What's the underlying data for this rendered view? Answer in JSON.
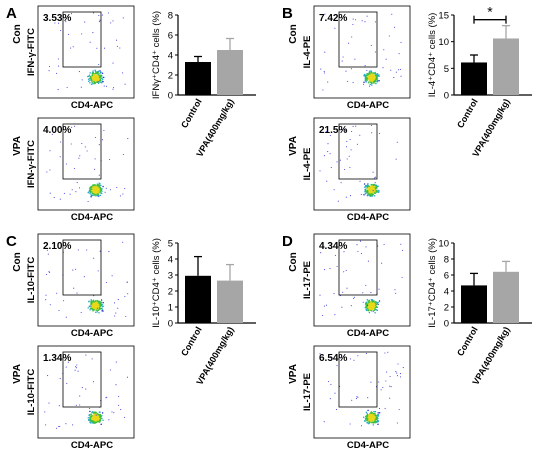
{
  "panels": [
    {
      "letter": "A",
      "flow": [
        {
          "row_label": "Con",
          "y_axis": "IFN-γ-FITC",
          "x_axis": "CD4-APC",
          "percent": "3.53%"
        },
        {
          "row_label": "VPA",
          "y_axis": "IFN-γ-FITC",
          "x_axis": "CD4-APC",
          "percent": "4.00%"
        }
      ]
    },
    {
      "letter": "B",
      "flow": [
        {
          "row_label": "Con",
          "y_axis": "IL-4-PE",
          "x_axis": "CD4-APC",
          "percent": "7.42%"
        },
        {
          "row_label": "VPA",
          "y_axis": "IL-4-PE",
          "x_axis": "CD4-APC",
          "percent": "21.5%"
        }
      ]
    },
    {
      "letter": "C",
      "flow": [
        {
          "row_label": "Con",
          "y_axis": "IL-10-FITC",
          "x_axis": "CD4-APC",
          "percent": "2.10%"
        },
        {
          "row_label": "VPA",
          "y_axis": "IL-10-FITC",
          "x_axis": "CD4-APC",
          "percent": "1.34%"
        }
      ]
    },
    {
      "letter": "D",
      "flow": [
        {
          "row_label": "Con",
          "y_axis": "IL-17-PE",
          "x_axis": "CD4-APC",
          "percent": "4.34%"
        },
        {
          "row_label": "VPA",
          "y_axis": "IL-17-PE",
          "x_axis": "CD4-APC",
          "percent": "6.54%"
        }
      ]
    }
  ],
  "chart_data": [
    {
      "type": "bar",
      "panel": "A",
      "ylabel": "IFNγ⁺CD4⁺ cells (%)",
      "ylim": [
        0,
        8
      ],
      "yticks": [
        0,
        2,
        4,
        6,
        8
      ],
      "categories": [
        "Control",
        "VPA(400mg/kg)"
      ],
      "values": [
        3.3,
        4.5
      ],
      "errors": [
        0.55,
        1.15
      ],
      "colors": [
        "#000000",
        "#a6a6a6"
      ],
      "significance": ""
    },
    {
      "type": "bar",
      "panel": "B",
      "ylabel": "IL-4⁺CD4⁺ cells (%)",
      "ylim": [
        0,
        15
      ],
      "yticks": [
        0,
        5,
        10,
        15
      ],
      "categories": [
        "Control",
        "VPA(400mg/kg)"
      ],
      "values": [
        6.1,
        10.6
      ],
      "errors": [
        1.4,
        2.4
      ],
      "colors": [
        "#000000",
        "#a6a6a6"
      ],
      "significance": "*"
    },
    {
      "type": "bar",
      "panel": "C",
      "ylabel": "IL-10⁺CD4⁺ cells (%)",
      "ylim": [
        0,
        5
      ],
      "yticks": [
        0,
        1,
        2,
        3,
        4,
        5
      ],
      "categories": [
        "Control",
        "VPA(400mg/kg)"
      ],
      "values": [
        2.95,
        2.65
      ],
      "errors": [
        1.2,
        1.0
      ],
      "colors": [
        "#000000",
        "#a6a6a6"
      ],
      "significance": ""
    },
    {
      "type": "bar",
      "panel": "D",
      "ylabel": "IL-17⁺CD4⁺ cells (%)",
      "ylim": [
        0,
        10
      ],
      "yticks": [
        0,
        2,
        4,
        6,
        8,
        10
      ],
      "categories": [
        "Control",
        "VPA(400mg/kg)"
      ],
      "values": [
        4.7,
        6.4
      ],
      "errors": [
        1.5,
        1.3
      ],
      "colors": [
        "#000000",
        "#a6a6a6"
      ],
      "significance": ""
    }
  ]
}
